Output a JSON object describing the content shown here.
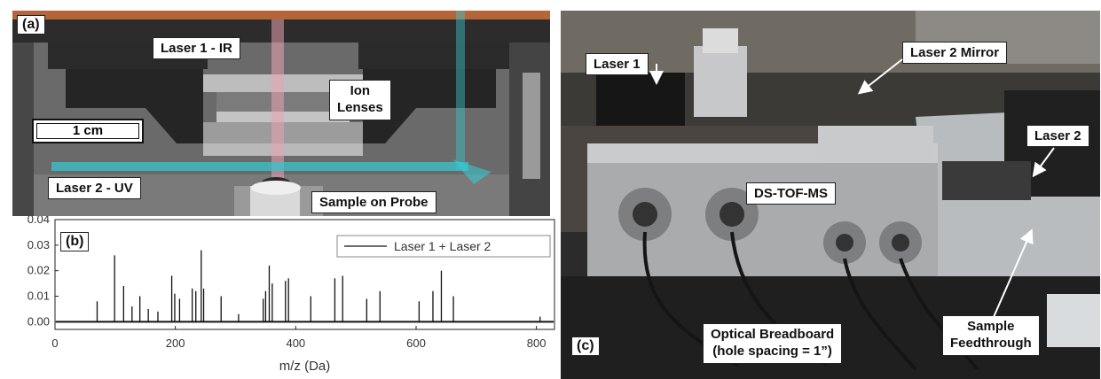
{
  "panel_a": {
    "letter": "(a)",
    "labels": {
      "laser1": "Laser 1 - IR",
      "ion_lenses_1": "Ion",
      "ion_lenses_2": "Lenses",
      "scale": "1 cm",
      "laser2": "Laser 2 - UV",
      "sample": "Sample on Probe"
    },
    "colors": {
      "ir_beam": "#e9a3b2",
      "uv_beam": "#38c6cf",
      "metal": "#5b5b5b",
      "inner": "#8a8a8a"
    }
  },
  "panel_c": {
    "letter": "(c)",
    "labels": {
      "laser1": "Laser 1",
      "laser2_mirror": "Laser 2 Mirror",
      "laser2": "Laser 2",
      "instrument": "DS-TOF-MS",
      "breadboard_1": "Optical Breadboard",
      "breadboard_2": "(hole spacing = 1”)",
      "feedthrough_1": "Sample",
      "feedthrough_2": "Feedthrough"
    }
  },
  "panel_b": {
    "letter": "(b)"
  },
  "chart_data": {
    "type": "line",
    "legend": "Laser 1 + Laser 2",
    "legend_position": "top-right",
    "xlabel": "m/z (Da)",
    "ylabel": "",
    "xlim": [
      0,
      830
    ],
    "ylim": [
      -0.003,
      0.04
    ],
    "x_ticks": [
      0,
      200,
      400,
      600,
      800
    ],
    "y_ticks": [
      "0.00",
      "0.01",
      "0.02",
      "0.03",
      "0.04"
    ],
    "series": [
      {
        "name": "Laser 1 + Laser 2",
        "peaks": [
          {
            "x": 70,
            "y": 0.008
          },
          {
            "x": 99,
            "y": 0.026
          },
          {
            "x": 114,
            "y": 0.014
          },
          {
            "x": 128,
            "y": 0.006
          },
          {
            "x": 141,
            "y": 0.01
          },
          {
            "x": 155,
            "y": 0.005
          },
          {
            "x": 171,
            "y": 0.004
          },
          {
            "x": 194,
            "y": 0.018
          },
          {
            "x": 199,
            "y": 0.011
          },
          {
            "x": 207,
            "y": 0.009
          },
          {
            "x": 228,
            "y": 0.013
          },
          {
            "x": 234,
            "y": 0.012
          },
          {
            "x": 243,
            "y": 0.028
          },
          {
            "x": 247,
            "y": 0.013
          },
          {
            "x": 276,
            "y": 0.01
          },
          {
            "x": 305,
            "y": 0.003
          },
          {
            "x": 346,
            "y": 0.009
          },
          {
            "x": 350,
            "y": 0.012
          },
          {
            "x": 356,
            "y": 0.022
          },
          {
            "x": 361,
            "y": 0.015
          },
          {
            "x": 383,
            "y": 0.016
          },
          {
            "x": 388,
            "y": 0.017
          },
          {
            "x": 425,
            "y": 0.01
          },
          {
            "x": 465,
            "y": 0.017
          },
          {
            "x": 478,
            "y": 0.018
          },
          {
            "x": 518,
            "y": 0.009
          },
          {
            "x": 540,
            "y": 0.012
          },
          {
            "x": 605,
            "y": 0.008
          },
          {
            "x": 628,
            "y": 0.012
          },
          {
            "x": 642,
            "y": 0.02
          },
          {
            "x": 662,
            "y": 0.01
          },
          {
            "x": 806,
            "y": 0.002
          }
        ]
      }
    ]
  }
}
